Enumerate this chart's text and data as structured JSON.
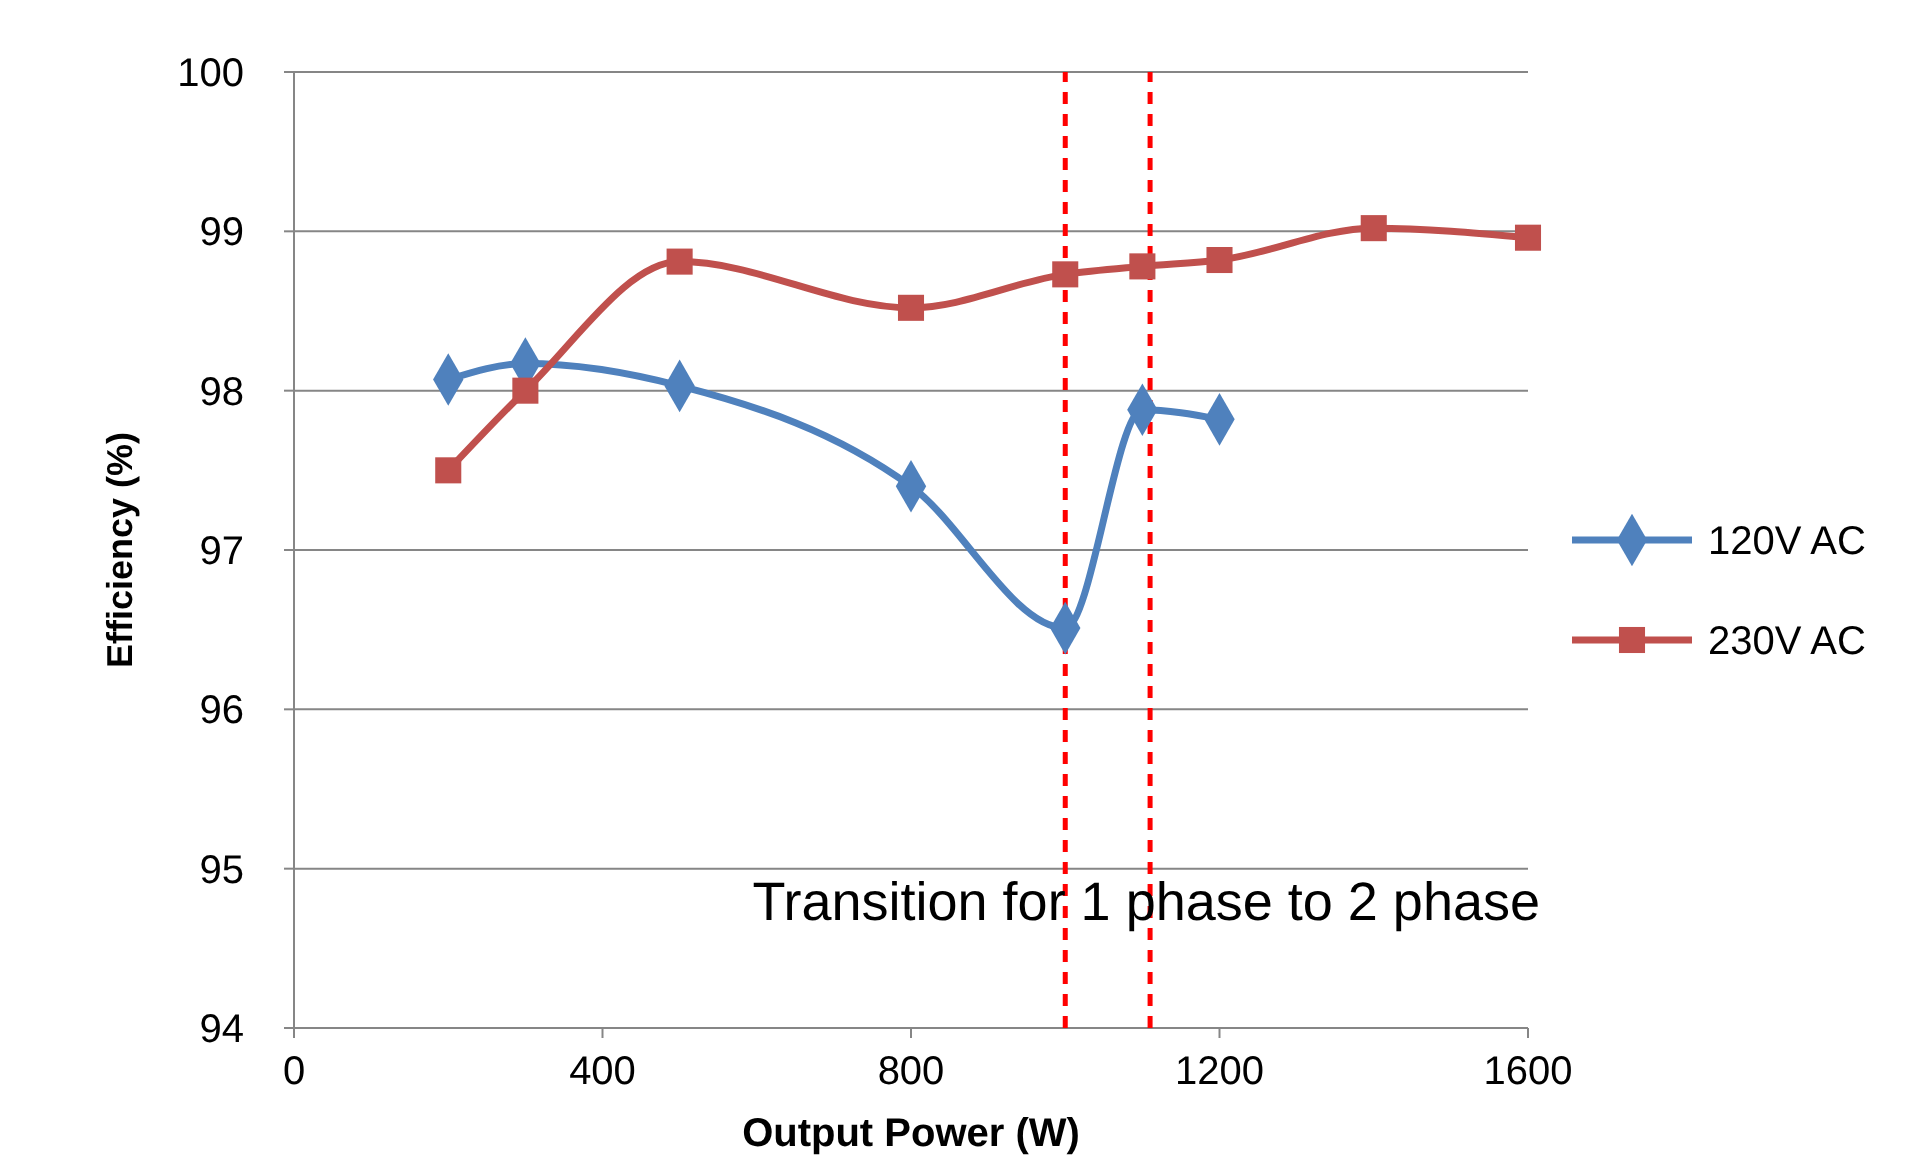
{
  "chart_data": {
    "type": "line",
    "xlabel": "Output Power (W)",
    "ylabel": "Efficiency (%)",
    "xlim": [
      0,
      1600
    ],
    "xticks": [
      0,
      400,
      800,
      1200,
      1600
    ],
    "ylim": [
      94,
      100
    ],
    "yticks": [
      94,
      95,
      96,
      97,
      98,
      99,
      100
    ],
    "grid": "y",
    "legend": "right",
    "line_style": "solid",
    "series": [
      {
        "name": "120V AC",
        "color": "#4f81bd",
        "marker": "diamond",
        "x": [
          200,
          300,
          500,
          800,
          1000,
          1100,
          1200
        ],
        "values": [
          98.07,
          98.17,
          98.03,
          97.4,
          96.51,
          97.88,
          97.82
        ]
      },
      {
        "name": "230V AC",
        "color": "#c0504d",
        "marker": "square",
        "x": [
          200,
          300,
          500,
          800,
          1000,
          1100,
          1200,
          1400,
          1600
        ],
        "values": [
          97.5,
          98.0,
          98.81,
          98.52,
          98.73,
          98.78,
          98.82,
          99.02,
          98.96
        ]
      }
    ],
    "ref_lines": [
      {
        "axis": "x",
        "value": 1000,
        "color": "#ff0000",
        "line_style": "dashed"
      },
      {
        "axis": "x",
        "value": 1110,
        "color": "#ff0000",
        "line_style": "dashed"
      }
    ],
    "annotations": [
      "Transition for 1 phase to 2 phase"
    ]
  }
}
